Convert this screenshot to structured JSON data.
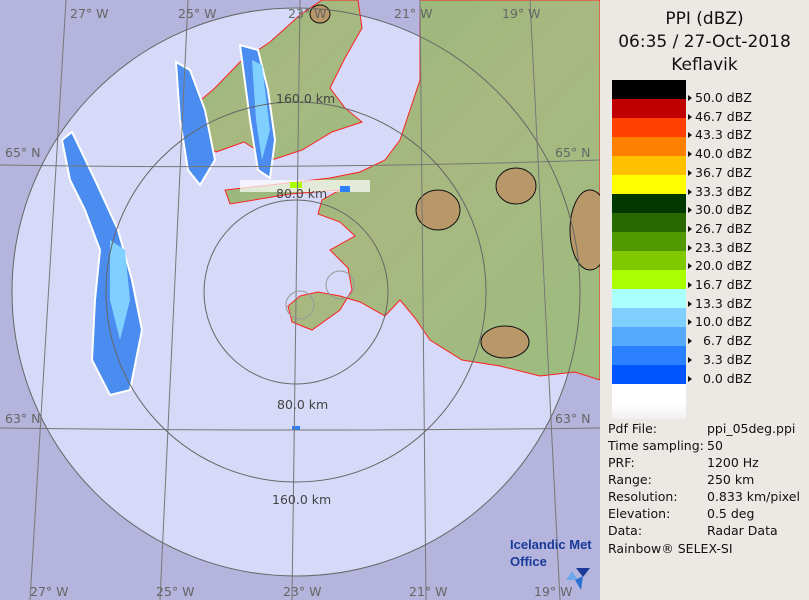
{
  "header": {
    "product": "PPI (dBZ)",
    "datetime": "06:35 / 27-Oct-2018",
    "site": "Keflavik"
  },
  "legend": {
    "colors": [
      "#000000",
      "#c00000",
      "#ff4000",
      "#ff8000",
      "#ffc000",
      "#ffff00",
      "#003800",
      "#286a00",
      "#509a00",
      "#80c800",
      "#aaff00",
      "#aaffff",
      "#80d0ff",
      "#55aaff",
      "#2a80ff",
      "#0055ff",
      "#ffffff"
    ],
    "labels": [
      "50.0 dBZ",
      "46.7 dBZ",
      "43.3 dBZ",
      "40.0 dBZ",
      "36.7 dBZ",
      "33.3 dBZ",
      "30.0 dBZ",
      "26.7 dBZ",
      "23.3 dBZ",
      "20.0 dBZ",
      "16.7 dBZ",
      "13.3 dBZ",
      "10.0 dBZ",
      "  6.7 dBZ",
      "  3.3 dBZ",
      "  0.0 dBZ"
    ]
  },
  "info": [
    {
      "key": "Pdf File:",
      "value": "ppi_05deg.ppi"
    },
    {
      "key": "Time sampling:",
      "value": "50"
    },
    {
      "key": "PRF:",
      "value": "1200 Hz"
    },
    {
      "key": "Range:",
      "value": "250 km"
    },
    {
      "key": "Resolution:",
      "value": "0.833 km/pixel"
    },
    {
      "key": "Elevation:",
      "value": "0.5 deg"
    },
    {
      "key": "Data:",
      "value": "Radar Data"
    }
  ],
  "credit": "Rainbow® SELEX-SI",
  "map": {
    "lon_labels_top": [
      "27° W",
      "25° W",
      "23° W",
      "21° W",
      "19° W"
    ],
    "lon_labels_bottom": [
      "27° W",
      "25° W",
      "23° W",
      "21° W",
      "19° W"
    ],
    "lat_labels": [
      "65° N",
      "63° N"
    ],
    "range_labels": [
      "160.0 km",
      "80.0 km",
      "80.0 km",
      "160.0 km"
    ],
    "logo": "Icelandic Met Office",
    "colors": {
      "outside": "#b4b4dc",
      "coverage": "#d6daf8",
      "coast": "#ff2020",
      "grid": "#777777"
    }
  }
}
